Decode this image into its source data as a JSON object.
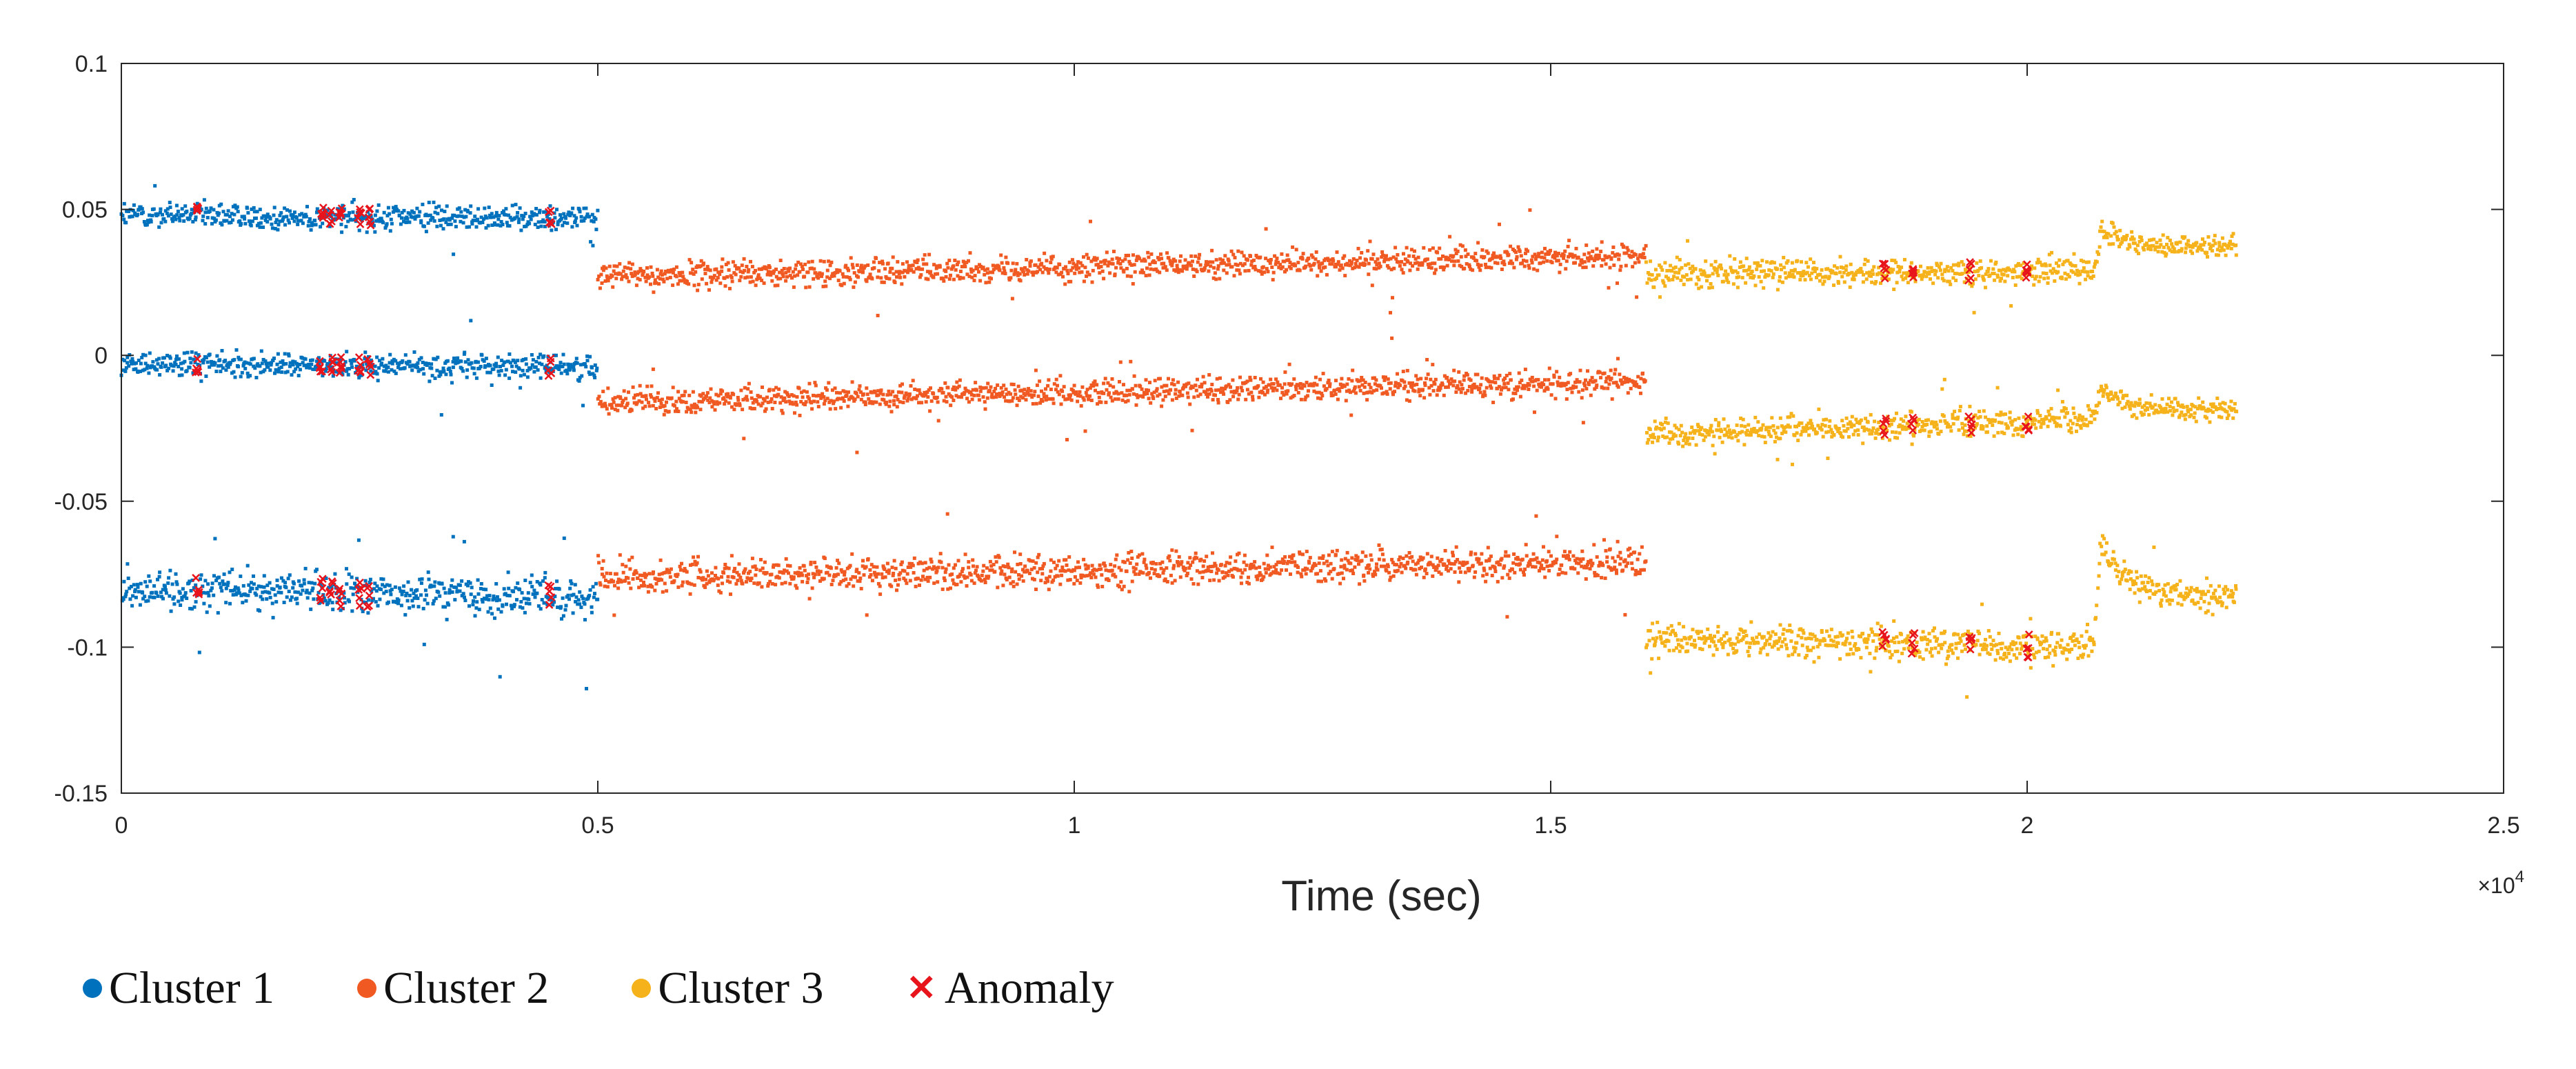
{
  "chart_data": {
    "type": "scatter",
    "title": "",
    "xlabel": "Time (sec)",
    "ylabel": "",
    "x_multiplier_label": "×10",
    "x_multiplier_exponent": "4",
    "xlim": [
      0,
      2.5
    ],
    "ylim": [
      -0.15,
      0.1
    ],
    "xticks": [
      0,
      0.5,
      1,
      1.5,
      2,
      2.5
    ],
    "xtick_labels": [
      "0",
      "0.5",
      "1",
      "1.5",
      "2",
      "2.5"
    ],
    "yticks": [
      0.1,
      0.05,
      0,
      -0.05,
      -0.1,
      -0.15
    ],
    "ytick_labels": [
      "0.1",
      "0.05",
      "0",
      "-0.05",
      "-0.1",
      "-0.15"
    ],
    "legend_position": "bottom-left",
    "series": [
      {
        "name": "Cluster 1",
        "color": "#0072BD",
        "bands": [
          {
            "x_start": 0,
            "x_end": 0.5,
            "y_start": 0.048,
            "y_end": 0.047,
            "noise": 0.004
          },
          {
            "x_start": 0,
            "x_end": 0.5,
            "y_start": -0.003,
            "y_end": -0.004,
            "noise": 0.004
          },
          {
            "x_start": 0,
            "x_end": 0.5,
            "y_start": -0.08,
            "y_end": -0.083,
            "noise": 0.006
          }
        ]
      },
      {
        "name": "Cluster 2",
        "color": "#F05A22",
        "bands": [
          {
            "x_start": 0.5,
            "x_end": 1.6,
            "y_start": 0.027,
            "y_end": 0.034,
            "noise": 0.004
          },
          {
            "x_start": 0.5,
            "x_end": 1.6,
            "y_start": -0.016,
            "y_end": -0.009,
            "noise": 0.004
          },
          {
            "x_start": 0.5,
            "x_end": 1.6,
            "y_start": -0.076,
            "y_end": -0.071,
            "noise": 0.005
          }
        ]
      },
      {
        "name": "Cluster 3",
        "color": "#F5B21A",
        "bands": [
          {
            "x_start": 1.6,
            "x_end": 2.07,
            "y_start": 0.028,
            "y_end": 0.029,
            "noise": 0.004
          },
          {
            "x_start": 1.6,
            "x_end": 2.07,
            "y_start": -0.027,
            "y_end": -0.022,
            "noise": 0.004
          },
          {
            "x_start": 1.6,
            "x_end": 2.07,
            "y_start": -0.097,
            "y_end": -0.1,
            "noise": 0.005
          }
        ],
        "transient_after": 2.07,
        "transient_end": 2.22,
        "transient_offsets": [
          0.043,
          -0.011,
          -0.064
        ],
        "transient_finals": [
          0.037,
          -0.019,
          -0.083
        ]
      }
    ],
    "anomalies": {
      "name": "Anomaly",
      "color": "#E8141C",
      "x": [
        0.08,
        0.21,
        0.22,
        0.23,
        0.25,
        0.26,
        0.45,
        1.85,
        1.88,
        1.94,
        2.0
      ]
    }
  },
  "legend": {
    "items": [
      {
        "label": "Cluster 1",
        "color": "#0072BD"
      },
      {
        "label": "Cluster 2",
        "color": "#F05A22"
      },
      {
        "label": "Cluster 3",
        "color": "#F5B21A"
      },
      {
        "label": "Anomaly",
        "color": "#E8141C",
        "marker": "x"
      }
    ]
  }
}
